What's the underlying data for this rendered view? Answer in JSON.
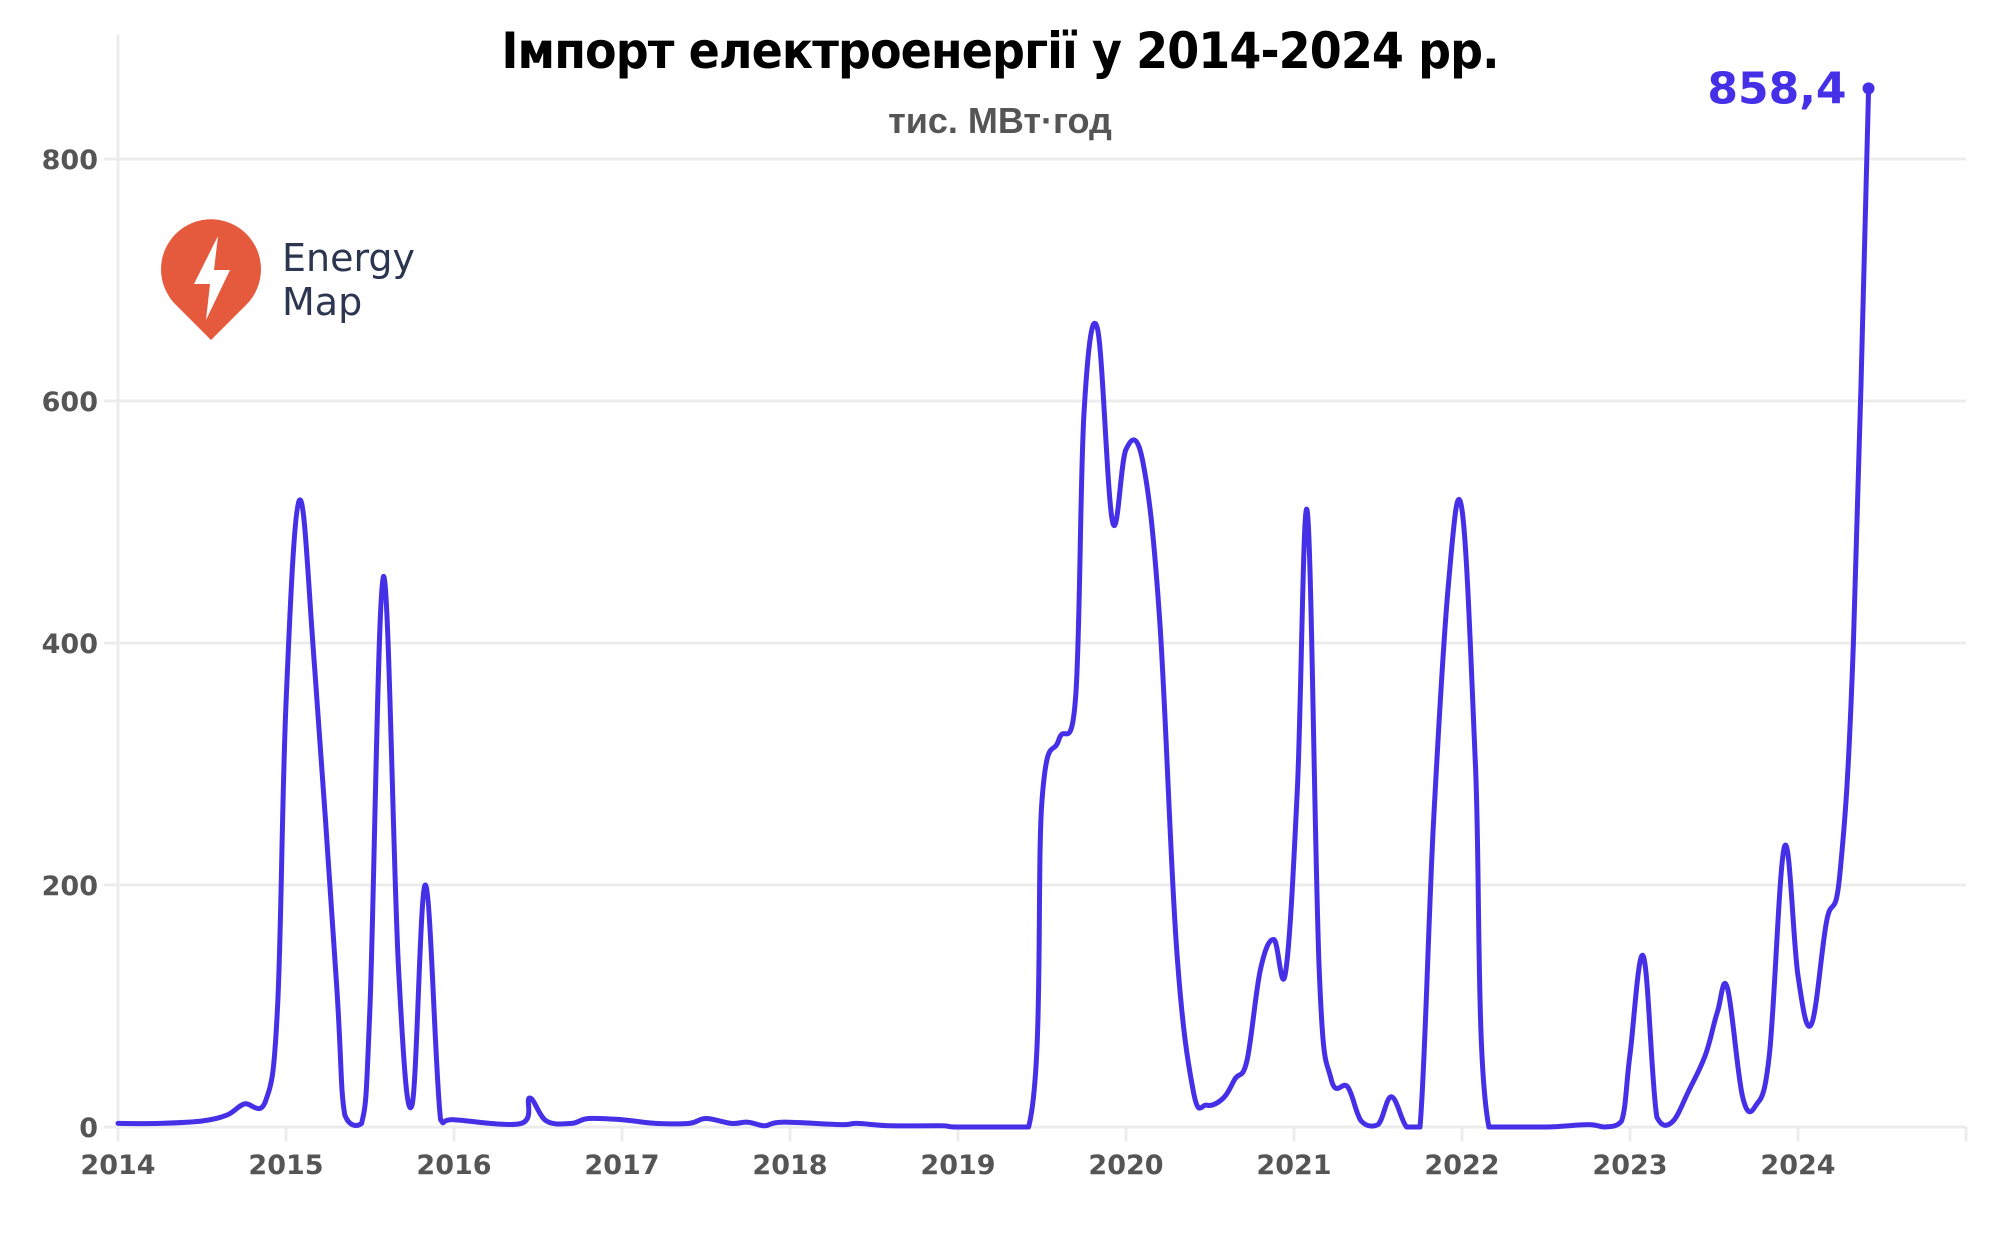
{
  "header": {
    "title": "Імпорт електроенергії у 2014-2024 рр.",
    "subtitle": "тис. МВт·год"
  },
  "logo": {
    "line1": "Energy",
    "line2": "Map",
    "pin_color": "#e55a3c",
    "text_color": "#2d3650"
  },
  "colors": {
    "line": "#4530e8",
    "grid": "#ececec",
    "tick_text": "#555555"
  },
  "chart_data": {
    "type": "line",
    "title": "Імпорт електроенергії у 2014-2024 рр.",
    "subtitle": "тис. МВт·год",
    "xlabel": "",
    "ylabel": "тис. МВт·год",
    "xlim": [
      2014,
      2025
    ],
    "ylim": [
      0,
      900
    ],
    "x_ticks": [
      "2014",
      "2015",
      "2016",
      "2017",
      "2018",
      "2019",
      "2020",
      "2021",
      "2022",
      "2023",
      "2024"
    ],
    "y_ticks": [
      "0",
      "200",
      "400",
      "600",
      "800"
    ],
    "grid": "horizontal",
    "legend": null,
    "annotations": [
      {
        "text": "858,4",
        "x": 2024.42,
        "y": 858.4
      }
    ],
    "series": [
      {
        "name": "Імпорт електроенергії",
        "points": [
          [
            2014.0,
            3
          ],
          [
            2014.25,
            3
          ],
          [
            2014.5,
            5
          ],
          [
            2014.65,
            10
          ],
          [
            2014.75,
            19
          ],
          [
            2014.88,
            22
          ],
          [
            2014.95,
            100
          ],
          [
            2015.0,
            350
          ],
          [
            2015.08,
            518
          ],
          [
            2015.17,
            380
          ],
          [
            2015.3,
            120
          ],
          [
            2015.35,
            10
          ],
          [
            2015.45,
            3
          ],
          [
            2015.5,
            100
          ],
          [
            2015.58,
            455
          ],
          [
            2015.67,
            130
          ],
          [
            2015.75,
            18
          ],
          [
            2015.83,
            200
          ],
          [
            2015.92,
            6
          ],
          [
            2016.0,
            6
          ],
          [
            2016.4,
            3
          ],
          [
            2016.45,
            24
          ],
          [
            2016.55,
            5
          ],
          [
            2016.7,
            3
          ],
          [
            2016.8,
            7
          ],
          [
            2017.0,
            6
          ],
          [
            2017.2,
            3
          ],
          [
            2017.4,
            3
          ],
          [
            2017.5,
            7
          ],
          [
            2017.65,
            3
          ],
          [
            2017.75,
            4
          ],
          [
            2017.85,
            1
          ],
          [
            2017.95,
            4
          ],
          [
            2018.3,
            2
          ],
          [
            2018.4,
            3
          ],
          [
            2018.6,
            1
          ],
          [
            2018.9,
            1
          ],
          [
            2019.0,
            0
          ],
          [
            2019.42,
            0
          ],
          [
            2019.5,
            270
          ],
          [
            2019.6,
            320
          ],
          [
            2019.7,
            355
          ],
          [
            2019.75,
            590
          ],
          [
            2019.83,
            660
          ],
          [
            2019.92,
            500
          ],
          [
            2020.0,
            560
          ],
          [
            2020.1,
            550
          ],
          [
            2020.2,
            420
          ],
          [
            2020.3,
            150
          ],
          [
            2020.4,
            30
          ],
          [
            2020.48,
            18
          ],
          [
            2020.58,
            24
          ],
          [
            2020.65,
            40
          ],
          [
            2020.72,
            55
          ],
          [
            2020.8,
            130
          ],
          [
            2020.88,
            155
          ],
          [
            2020.95,
            128
          ],
          [
            2021.02,
            280
          ],
          [
            2021.08,
            508
          ],
          [
            2021.15,
            130
          ],
          [
            2021.22,
            40
          ],
          [
            2021.32,
            33
          ],
          [
            2021.4,
            5
          ],
          [
            2021.5,
            2
          ],
          [
            2021.58,
            25
          ],
          [
            2021.67,
            0
          ],
          [
            2021.75,
            0
          ],
          [
            2021.83,
            250
          ],
          [
            2021.92,
            450
          ],
          [
            2022.0,
            510
          ],
          [
            2022.08,
            300
          ],
          [
            2022.16,
            0
          ],
          [
            2022.5,
            0
          ],
          [
            2022.75,
            2
          ],
          [
            2022.85,
            0
          ],
          [
            2022.95,
            5
          ],
          [
            2023.0,
            60
          ],
          [
            2023.08,
            141
          ],
          [
            2023.16,
            8
          ],
          [
            2023.25,
            4
          ],
          [
            2023.35,
            30
          ],
          [
            2023.45,
            60
          ],
          [
            2023.52,
            95
          ],
          [
            2023.58,
            115
          ],
          [
            2023.67,
            25
          ],
          [
            2023.75,
            18
          ],
          [
            2023.83,
            60
          ],
          [
            2023.92,
            232
          ],
          [
            2024.0,
            125
          ],
          [
            2024.08,
            85
          ],
          [
            2024.17,
            170
          ],
          [
            2024.25,
            210
          ],
          [
            2024.33,
            400
          ],
          [
            2024.42,
            858.4
          ]
        ]
      }
    ]
  }
}
